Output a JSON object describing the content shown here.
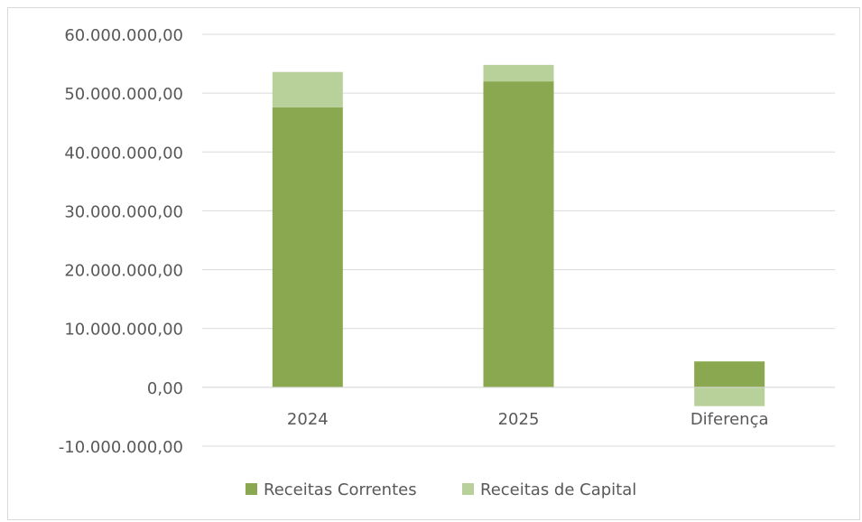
{
  "chart_data": {
    "type": "bar",
    "stacked": true,
    "categories": [
      "2024",
      "2025",
      "Diferença"
    ],
    "series": [
      {
        "name": "Receitas Correntes",
        "color": "#8aa84f",
        "values": [
          47600000,
          52000000,
          4400000
        ]
      },
      {
        "name": "Receitas de Capital",
        "color": "#b8d09a",
        "values": [
          6000000,
          2800000,
          -3200000
        ]
      }
    ],
    "ylim": [
      -10000000,
      60000000
    ],
    "yticks": [
      {
        "value": 60000000,
        "label": "60.000.000,00"
      },
      {
        "value": 50000000,
        "label": "50.000.000,00"
      },
      {
        "value": 40000000,
        "label": "40.000.000,00"
      },
      {
        "value": 30000000,
        "label": "30.000.000,00"
      },
      {
        "value": 20000000,
        "label": "20.000.000,00"
      },
      {
        "value": 10000000,
        "label": "10.000.000,00"
      },
      {
        "value": 0,
        "label": "0,00"
      },
      {
        "value": -10000000,
        "label": "-10.000.000,00"
      }
    ],
    "grid": true,
    "legend_position": "bottom",
    "title": "",
    "xlabel": "",
    "ylabel": ""
  }
}
